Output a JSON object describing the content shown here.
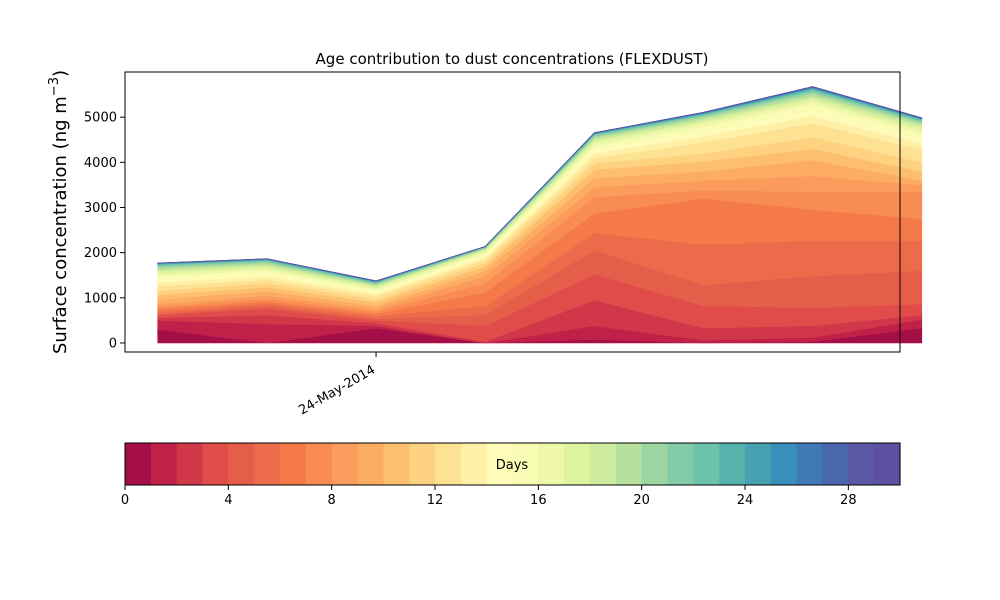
{
  "chart_data": {
    "type": "area",
    "title": "Age contribution to dust concentrations (FLEXDUST)",
    "ylabel_main": "Surface concentration (ng m",
    "ylabel_exp": "−3",
    "ylabel_close": ")",
    "xlabel": "",
    "xticks": [
      {
        "x": 2,
        "label": "24-May-2014"
      }
    ],
    "xlim": [
      -0.3,
      6.8
    ],
    "ylim": [
      -200,
      6000
    ],
    "yticks": [
      0,
      1000,
      2000,
      3000,
      4000,
      5000
    ],
    "x": [
      0,
      1,
      2,
      3,
      4,
      5,
      6,
      7
    ],
    "band_boundaries": [
      [
        300,
        0,
        330,
        0,
        80,
        0,
        30,
        330
      ],
      [
        500,
        420,
        380,
        0,
        380,
        60,
        120,
        520
      ],
      [
        560,
        620,
        440,
        30,
        950,
        330,
        380,
        620
      ],
      [
        620,
        760,
        500,
        380,
        1520,
        820,
        780,
        860
      ],
      [
        640,
        820,
        540,
        620,
        2050,
        1280,
        1480,
        1600
      ],
      [
        700,
        870,
        600,
        820,
        2440,
        2180,
        2270,
        2270
      ],
      [
        760,
        920,
        650,
        1120,
        2870,
        3200,
        2950,
        2750
      ],
      [
        800,
        980,
        700,
        1320,
        3230,
        3380,
        3350,
        3350
      ],
      [
        860,
        1050,
        760,
        1480,
        3450,
        3600,
        3700,
        3500
      ],
      [
        960,
        1150,
        820,
        1600,
        3650,
        3800,
        4050,
        3600
      ],
      [
        1060,
        1240,
        900,
        1700,
        3840,
        4020,
        4300,
        3800
      ],
      [
        1160,
        1330,
        970,
        1780,
        3980,
        4200,
        4560,
        4000
      ],
      [
        1260,
        1400,
        1040,
        1850,
        4100,
        4440,
        4870,
        4280
      ],
      [
        1340,
        1480,
        1090,
        1900,
        4200,
        4580,
        5030,
        4420
      ],
      [
        1410,
        1550,
        1140,
        1950,
        4290,
        4700,
        5170,
        4530
      ],
      [
        1480,
        1610,
        1180,
        1990,
        4370,
        4800,
        5290,
        4640
      ],
      [
        1540,
        1660,
        1220,
        2030,
        4440,
        4870,
        5360,
        4720
      ],
      [
        1590,
        1700,
        1250,
        2060,
        4490,
        4920,
        5420,
        4780
      ],
      [
        1630,
        1740,
        1280,
        2080,
        4530,
        4960,
        5470,
        4830
      ],
      [
        1670,
        1770,
        1300,
        2100,
        4560,
        5000,
        5520,
        4870
      ],
      [
        1700,
        1800,
        1320,
        2110,
        4590,
        5030,
        5560,
        4900
      ],
      [
        1720,
        1820,
        1335,
        2120,
        4610,
        5050,
        5590,
        4920
      ],
      [
        1740,
        1835,
        1345,
        2125,
        4625,
        5065,
        5615,
        4940
      ],
      [
        1750,
        1845,
        1355,
        2128,
        4635,
        5078,
        5635,
        4955
      ],
      [
        1757,
        1852,
        1362,
        2131,
        4642,
        5088,
        5650,
        4965
      ],
      [
        1762,
        1857,
        1367,
        2133,
        4647,
        5095,
        5660,
        4972
      ],
      [
        1766,
        1861,
        1371,
        2135,
        4651,
        5100,
        5668,
        4978
      ],
      [
        1769,
        1864,
        1374,
        2137,
        4654,
        5104,
        5674,
        4982
      ],
      [
        1771,
        1866,
        1376,
        2138,
        4656,
        5107,
        5678,
        4985
      ],
      [
        1772,
        1867,
        1377,
        2139,
        4657,
        5109,
        5680,
        4987
      ]
    ],
    "colorbar": {
      "label": "Days",
      "range": [
        0,
        30
      ],
      "ticks": [
        0,
        4,
        8,
        12,
        16,
        20,
        24,
        28
      ],
      "colors": [
        "#a50f47",
        "#bf2148",
        "#d03749",
        "#df4c4a",
        "#e55e4a",
        "#ec6b4b",
        "#f47a4a",
        "#f88c53",
        "#fb9c5c",
        "#fdad63",
        "#fdbf6f",
        "#fed281",
        "#fee294",
        "#fff0a8",
        "#fffbb8",
        "#f8fcb4",
        "#eef8a8",
        "#def39e",
        "#cdeb9c",
        "#b6e09e",
        "#9dd5a3",
        "#82cba6",
        "#6cc3a9",
        "#58b2ac",
        "#48a1b0",
        "#3a8ebb",
        "#3f79b6",
        "#4a66ad",
        "#5a58a5",
        "#5e4fa2"
      ]
    }
  }
}
